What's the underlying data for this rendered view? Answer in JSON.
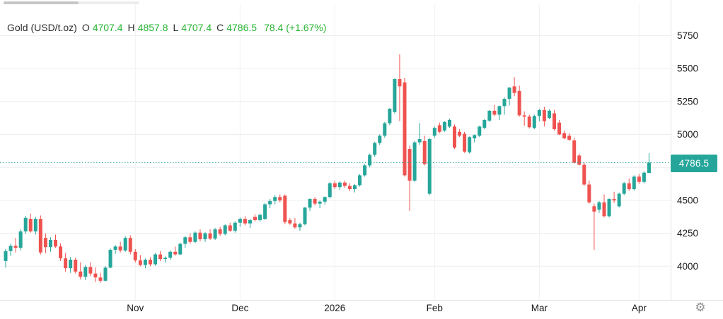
{
  "header": {
    "symbol": "Gold (USD/t.oz)",
    "fields": [
      {
        "label": "O",
        "value": "4707.4"
      },
      {
        "label": "H",
        "value": "4857.8"
      },
      {
        "label": "L",
        "value": "4707.4"
      },
      {
        "label": "C",
        "value": "4786.5"
      }
    ],
    "change": "78.4 (+1.67%)"
  },
  "icons": {
    "gear": "⚙"
  },
  "colors": {
    "up": "#26a69a",
    "down": "#ef5350",
    "header_green": "#27b434",
    "badge_bg": "#26a69a",
    "grid_h": "#ededed",
    "grid_v": "#f1f1f1",
    "axis_border": "#e3e3e3",
    "axis_text": "#1a1a1a",
    "price_line": "#26a69a"
  },
  "chart_data": {
    "type": "candlestick",
    "title": "Gold (USD/t.oz)",
    "ohlc_header": {
      "open": 4707.4,
      "high": 4857.8,
      "low": 4707.4,
      "close": 4786.5,
      "change": 78.4,
      "change_pct": "+1.67%"
    },
    "y_axis": {
      "ticks": [
        5750,
        5500,
        5250,
        5000,
        4750,
        4500,
        4250,
        4000
      ],
      "visible_range": [
        3860,
        5990
      ],
      "grid": true
    },
    "x_axis": {
      "tick_labels": [
        "Nov",
        "Dec",
        "2026",
        "Feb",
        "Mar",
        "Apr"
      ],
      "tick_candle_index": [
        26,
        47,
        66,
        86,
        107,
        127
      ],
      "grid": true
    },
    "price_line": {
      "value": 4786.5,
      "label": "4786.5",
      "style": "dotted"
    },
    "legend_position": "top-left",
    "candles": [
      [
        4040,
        4130,
        3990,
        4115
      ],
      [
        4115,
        4170,
        4080,
        4155
      ],
      [
        4155,
        4215,
        4105,
        4140
      ],
      [
        4140,
        4280,
        4120,
        4265
      ],
      [
        4265,
        4382,
        4245,
        4367
      ],
      [
        4360,
        4400,
        4255,
        4265
      ],
      [
        4265,
        4375,
        4240,
        4360
      ],
      [
        4360,
        4385,
        4090,
        4105
      ],
      [
        4215,
        4250,
        4100,
        4145
      ],
      [
        4145,
        4220,
        4110,
        4200
      ],
      [
        4200,
        4240,
        4140,
        4150
      ],
      [
        4150,
        4175,
        4040,
        4060
      ],
      [
        4060,
        4100,
        3960,
        3985
      ],
      [
        3985,
        4070,
        3950,
        4050
      ],
      [
        4050,
        4065,
        3945,
        3960
      ],
      [
        3960,
        4030,
        3900,
        3920
      ],
      [
        3920,
        4010,
        3895,
        3995
      ],
      [
        3995,
        4030,
        3925,
        3945
      ],
      [
        3945,
        3990,
        3880,
        3915
      ],
      [
        3915,
        3950,
        3875,
        3890
      ],
      [
        3890,
        4000,
        3885,
        3990
      ],
      [
        3990,
        4135,
        3985,
        4125
      ],
      [
        4125,
        4160,
        4095,
        4150
      ],
      [
        4150,
        4185,
        4105,
        4120
      ],
      [
        4120,
        4230,
        4110,
        4215
      ],
      [
        4215,
        4235,
        4090,
        4110
      ],
      [
        4110,
        4130,
        4030,
        4045
      ],
      [
        4045,
        4085,
        4000,
        4010
      ],
      [
        4010,
        4060,
        3985,
        4050
      ],
      [
        4050,
        4070,
        4000,
        4015
      ],
      [
        4015,
        4100,
        4005,
        4090
      ],
      [
        4090,
        4115,
        4040,
        4055
      ],
      [
        4055,
        4075,
        4030,
        4065
      ],
      [
        4065,
        4120,
        4050,
        4110
      ],
      [
        4110,
        4150,
        4080,
        4090
      ],
      [
        4090,
        4180,
        4085,
        4170
      ],
      [
        4170,
        4230,
        4140,
        4220
      ],
      [
        4220,
        4250,
        4170,
        4185
      ],
      [
        4185,
        4265,
        4175,
        4255
      ],
      [
        4255,
        4280,
        4190,
        4205
      ],
      [
        4205,
        4260,
        4185,
        4250
      ],
      [
        4250,
        4280,
        4200,
        4210
      ],
      [
        4210,
        4290,
        4200,
        4280
      ],
      [
        4280,
        4300,
        4230,
        4245
      ],
      [
        4245,
        4320,
        4235,
        4310
      ],
      [
        4310,
        4330,
        4260,
        4270
      ],
      [
        4270,
        4340,
        4255,
        4330
      ],
      [
        4330,
        4370,
        4300,
        4360
      ],
      [
        4360,
        4380,
        4310,
        4325
      ],
      [
        4325,
        4360,
        4290,
        4350
      ],
      [
        4375,
        4395,
        4340,
        4350
      ],
      [
        4350,
        4400,
        4340,
        4390
      ],
      [
        4360,
        4480,
        4350,
        4470
      ],
      [
        4470,
        4510,
        4440,
        4495
      ],
      [
        4495,
        4540,
        4470,
        4525
      ],
      [
        4525,
        4545,
        4485,
        4500
      ],
      [
        4535,
        4545,
        4320,
        4335
      ],
      [
        4350,
        4365,
        4315,
        4325
      ],
      [
        4325,
        4365,
        4285,
        4295
      ],
      [
        4295,
        4330,
        4270,
        4320
      ],
      [
        4320,
        4450,
        4310,
        4445
      ],
      [
        4445,
        4515,
        4420,
        4510
      ],
      [
        4510,
        4525,
        4460,
        4475
      ],
      [
        4475,
        4500,
        4440,
        4490
      ],
      [
        4490,
        4530,
        4470,
        4525
      ],
      [
        4525,
        4640,
        4515,
        4630
      ],
      [
        4630,
        4650,
        4585,
        4600
      ],
      [
        4600,
        4645,
        4580,
        4635
      ],
      [
        4635,
        4650,
        4595,
        4610
      ],
      [
        4610,
        4630,
        4570,
        4585
      ],
      [
        4585,
        4625,
        4560,
        4615
      ],
      [
        4615,
        4700,
        4605,
        4690
      ],
      [
        4690,
        4775,
        4680,
        4765
      ],
      [
        4765,
        4855,
        4750,
        4845
      ],
      [
        4845,
        4945,
        4830,
        4935
      ],
      [
        4935,
        5000,
        4920,
        4990
      ],
      [
        4990,
        5095,
        4975,
        5085
      ],
      [
        5085,
        5200,
        5070,
        5195
      ],
      [
        5170,
        5425,
        5160,
        5420
      ],
      [
        5420,
        5607,
        5100,
        5365
      ],
      [
        5395,
        5430,
        4680,
        4690
      ],
      [
        4890,
        4915,
        4420,
        4650
      ],
      [
        4650,
        4950,
        4640,
        4940
      ],
      [
        4940,
        5086,
        4920,
        4965
      ],
      [
        4950,
        4990,
        4765,
        4775
      ],
      [
        4550,
        4970,
        4540,
        4965
      ],
      [
        4990,
        5060,
        4975,
        5050
      ],
      [
        5070,
        5090,
        5010,
        5020
      ],
      [
        5030,
        5100,
        5020,
        5095
      ],
      [
        5060,
        5120,
        5050,
        5110
      ],
      [
        5060,
        5075,
        4890,
        4900
      ],
      [
        5020,
        5040,
        4980,
        4990
      ],
      [
        5005,
        5020,
        4860,
        4870
      ],
      [
        4865,
        4985,
        4855,
        4980
      ],
      [
        4970,
        5000,
        4940,
        4995
      ],
      [
        4990,
        5065,
        4980,
        5060
      ],
      [
        5050,
        5115,
        5040,
        5110
      ],
      [
        5105,
        5185,
        5095,
        5180
      ],
      [
        5180,
        5225,
        5140,
        5150
      ],
      [
        5150,
        5220,
        5110,
        5215
      ],
      [
        5215,
        5280,
        5150,
        5270
      ],
      [
        5270,
        5360,
        5220,
        5355
      ],
      [
        5365,
        5435,
        5290,
        5315
      ],
      [
        5330,
        5370,
        5135,
        5145
      ],
      [
        5145,
        5175,
        5065,
        5135
      ],
      [
        5135,
        5150,
        5045,
        5055
      ],
      [
        5050,
        5150,
        5040,
        5140
      ],
      [
        5140,
        5195,
        5100,
        5185
      ],
      [
        5185,
        5210,
        5060,
        5100
      ],
      [
        5125,
        5190,
        5115,
        5180
      ],
      [
        5160,
        5185,
        5030,
        5040
      ],
      [
        5090,
        5110,
        4995,
        5000
      ],
      [
        5010,
        5030,
        4965,
        4970
      ],
      [
        4990,
        5010,
        4950,
        4960
      ],
      [
        4955,
        4975,
        4780,
        4785
      ],
      [
        4840,
        4855,
        4765,
        4770
      ],
      [
        4770,
        4785,
        4610,
        4620
      ],
      [
        4620,
        4650,
        4475,
        4485
      ],
      [
        4455,
        4475,
        4125,
        4415
      ],
      [
        4430,
        4495,
        4405,
        4485
      ],
      [
        4485,
        4545,
        4370,
        4380
      ],
      [
        4380,
        4515,
        4370,
        4510
      ],
      [
        4510,
        4565,
        4480,
        4500
      ],
      [
        4455,
        4560,
        4445,
        4550
      ],
      [
        4550,
        4640,
        4540,
        4630
      ],
      [
        4630,
        4665,
        4570,
        4585
      ],
      [
        4585,
        4690,
        4575,
        4680
      ],
      [
        4680,
        4700,
        4625,
        4640
      ],
      [
        4640,
        4720,
        4630,
        4710
      ],
      [
        4707.4,
        4857.8,
        4707.4,
        4786.5
      ]
    ]
  }
}
